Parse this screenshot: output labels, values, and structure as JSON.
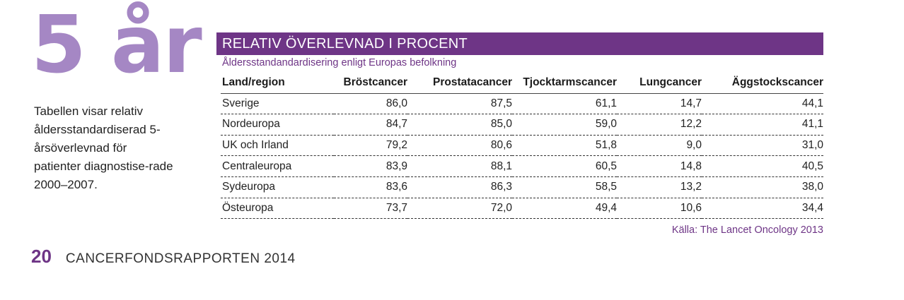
{
  "big_title": "5 år",
  "intro_text": "Tabellen visar relativ åldersstandardiserad 5-årsöverlevnad för patienter diagnostise-rade 2000–2007.",
  "table": {
    "title": "RELATIV ÖVERLEVNAD I PROCENT",
    "subtitle": "Åldersstandandardisering enligt Europas befolkning",
    "headers": [
      "Land/region",
      "Bröstcancer",
      "Prostatacancer",
      "Tjocktarmscancer",
      "Lungcancer",
      "Äggstockscancer"
    ],
    "rows": [
      [
        "Sverige",
        "86,0",
        "87,5",
        "61,1",
        "14,7",
        "44,1"
      ],
      [
        "Nordeuropa",
        "84,7",
        "85,0",
        "59,0",
        "12,2",
        "41,1"
      ],
      [
        "UK och Irland",
        "79,2",
        "80,6",
        "51,8",
        "9,0",
        "31,0"
      ],
      [
        "Centraleuropa",
        "83,9",
        "88,1",
        "60,5",
        "14,8",
        "40,5"
      ],
      [
        "Sydeuropa",
        "83,6",
        "86,3",
        "58,5",
        "13,2",
        "38,0"
      ],
      [
        "Östeuropa",
        "73,7",
        "72,0",
        "49,4",
        "10,6",
        "34,4"
      ]
    ],
    "source": "Källa: The Lancet Oncology 2013"
  },
  "footer": {
    "page_number": "20",
    "report_name": "CANCERFONDSRAPPORTEN 2014"
  },
  "colors": {
    "accent": "#6e3586",
    "title_light": "#a587c4"
  }
}
